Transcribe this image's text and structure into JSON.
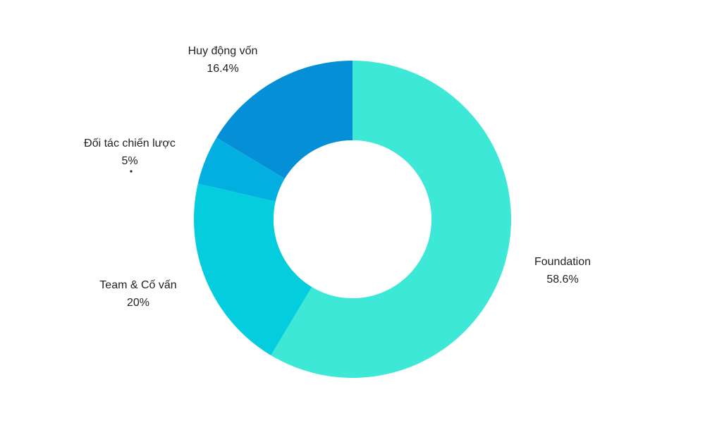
{
  "chart_data": {
    "type": "pie",
    "variant": "donut",
    "title": "",
    "legend": "none",
    "slices": [
      {
        "label": "Foundation",
        "value": 58.6,
        "display": "58.6%",
        "color": "#3de8d6"
      },
      {
        "label": "Team & Cố vấn",
        "value": 20,
        "display": "20%",
        "color": "#04cede"
      },
      {
        "label": "Đối tác chiến lược",
        "value": 5,
        "display": "5%",
        "color": "#03afe0"
      },
      {
        "label": "Huy động vốn",
        "value": 16.4,
        "display": "16.4%",
        "color": "#058fd7"
      }
    ]
  }
}
